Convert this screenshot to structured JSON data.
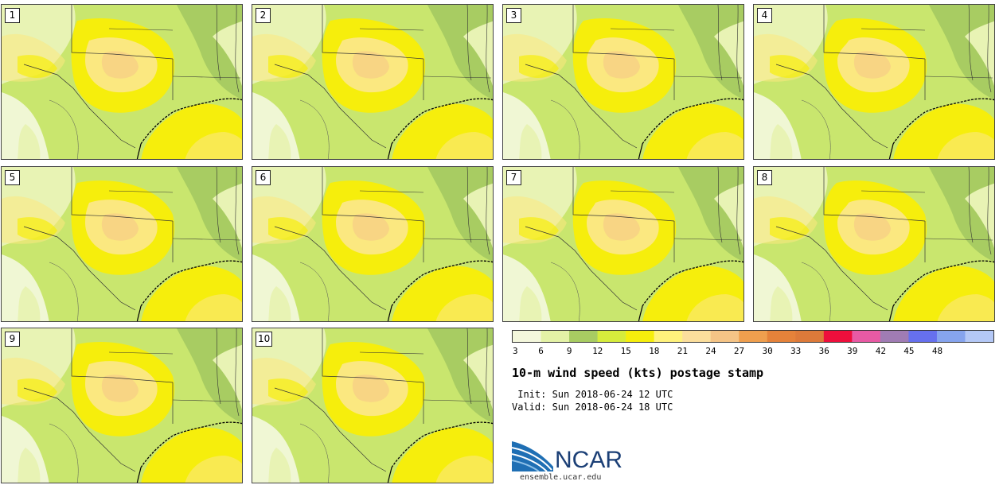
{
  "panels": [
    {
      "label": "1"
    },
    {
      "label": "2"
    },
    {
      "label": "3"
    },
    {
      "label": "4"
    },
    {
      "label": "5"
    },
    {
      "label": "6"
    },
    {
      "label": "7"
    },
    {
      "label": "8"
    },
    {
      "label": "9"
    },
    {
      "label": "10"
    }
  ],
  "colorbar": {
    "ticks": [
      "3",
      "6",
      "9",
      "12",
      "15",
      "18",
      "21",
      "24",
      "27",
      "30",
      "33",
      "36",
      "39",
      "42",
      "45",
      "48"
    ],
    "colors": [
      "#f4f7dc",
      "#e4f2a6",
      "#a8cc62",
      "#d6ec3c",
      "#f6ee0c",
      "#fff27c",
      "#fbde9c",
      "#f5c486",
      "#ef9f4e",
      "#e5823a",
      "#dd7a3a",
      "#ee0f3c",
      "#e85aa4",
      "#a07cb4",
      "#6670ee",
      "#86a4ee",
      "#b4c8f6"
    ]
  },
  "title": "10-m wind speed (kts) postage stamp",
  "init_line": " Init: Sun 2018-06-24 12 UTC",
  "valid_line": "Valid: Sun 2018-06-24 18 UTC",
  "logo": {
    "text": "NCAR",
    "url": "ensemble.ucar.edu"
  },
  "map_colors": {
    "base": "#c9e66e",
    "green": "#a8cc62",
    "pale": "#e8f3b4",
    "white": "#f7f9e6",
    "yellow": "#f6ee0c",
    "lightyellow": "#fbe880",
    "orange": "#f5c486"
  }
}
